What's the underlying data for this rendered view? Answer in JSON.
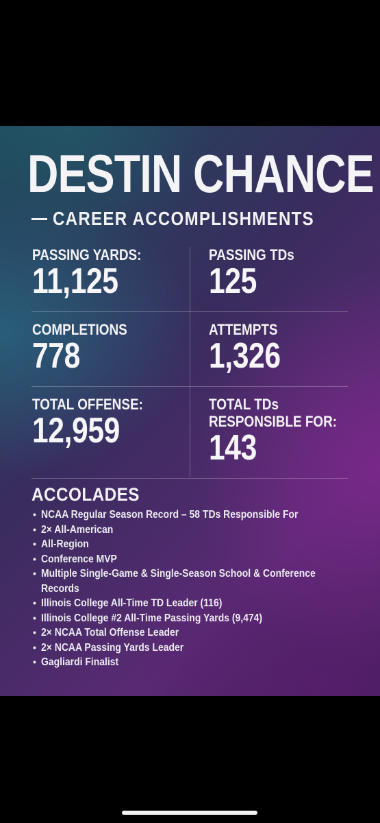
{
  "title": "DESTIN CHANCE",
  "subtitle": "CAREER ACCOMPLISHMENTS",
  "stats": [
    {
      "label": "PASSING YARDS:",
      "value": "11,125"
    },
    {
      "label": "PASSING TDs",
      "value": "125"
    },
    {
      "label": "COMPLETIONS",
      "value": "778"
    },
    {
      "label": "ATTEMPTS",
      "value": "1,326"
    },
    {
      "label": "TOTAL OFFENSE:",
      "value": "12,959"
    },
    {
      "label": "TOTAL TDs",
      "label_line2": "RESPONSIBLE FOR:",
      "value": "143"
    }
  ],
  "accolades": {
    "heading": "ACCOLADES",
    "items": [
      "NCAA Regular Season Record – 58 TDs Responsible For",
      "2× All-American",
      "All-Region",
      "Conference MVP",
      "Multiple Single-Game & Single-Season School & Conference",
      "Records",
      "Illinois College All-Time TD Leader (116)",
      "Illinois College #2 All-Time Passing Yards (9,474)",
      "2× NCAA Total Offense Leader",
      "2× NCAA Passing Yards Leader",
      "Gagliardi Finalist"
    ]
  },
  "colors": {
    "background": "#000000",
    "text": "#f2f2f4",
    "gradient_teal": "#1e4a5c",
    "gradient_purple": "#5a2a74"
  }
}
